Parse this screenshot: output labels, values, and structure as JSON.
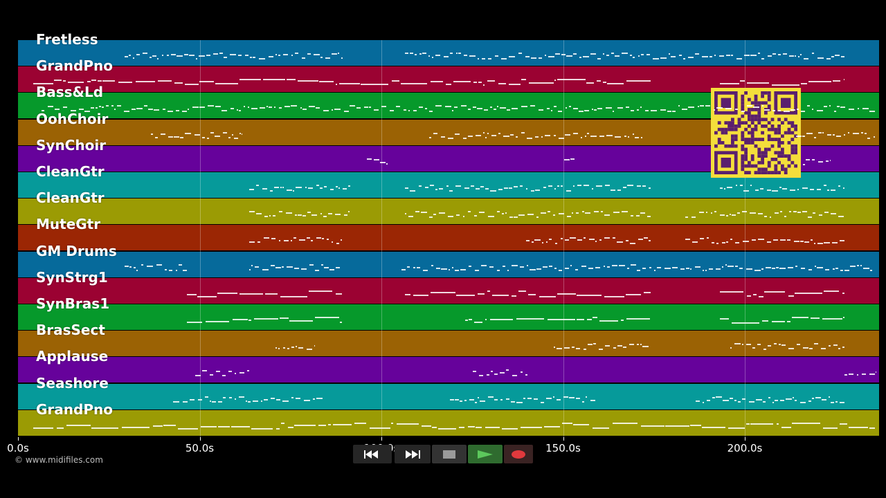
{
  "tracks": [
    {
      "name": "Fretless",
      "color": "#066a9b"
    },
    {
      "name": "GrandPno",
      "color": "#9b0232"
    },
    {
      "name": "Bass&Ld",
      "color": "#06992b"
    },
    {
      "name": "OohChoir",
      "color": "#9b6204"
    },
    {
      "name": "SynChoir",
      "color": "#66029b"
    },
    {
      "name": "CleanGtr",
      "color": "#069a9a"
    },
    {
      "name": "CleanGtr",
      "color": "#9b9b04"
    },
    {
      "name": "MuteGtr",
      "color": "#9b2604"
    },
    {
      "name": "GM Drums",
      "color": "#066a9b"
    },
    {
      "name": "SynStrg1",
      "color": "#9b0232"
    },
    {
      "name": "SynBras1",
      "color": "#06992b"
    },
    {
      "name": "BrasSect",
      "color": "#9b6204"
    },
    {
      "name": "Applause",
      "color": "#66029b"
    },
    {
      "name": "Seashore",
      "color": "#069a9a"
    },
    {
      "name": "GrandPno",
      "color": "#9b9b04"
    }
  ],
  "timeline": {
    "ticks": [
      "0.0s",
      "50.0s",
      "100.0s",
      "150.0s",
      "200.0s"
    ],
    "tick_seconds": [
      0,
      50,
      100,
      150,
      200
    ],
    "max_seconds": 237
  },
  "copyright": "© www.midifiles.com",
  "controls": [
    {
      "name": "rewind-button",
      "icon": "rewind-icon"
    },
    {
      "name": "fast-forward-button",
      "icon": "fast-forward-icon"
    },
    {
      "name": "stop-button",
      "icon": "stop-icon"
    },
    {
      "name": "play-button",
      "icon": "play-icon"
    },
    {
      "name": "record-button",
      "icon": "record-icon"
    }
  ],
  "colors": {
    "background": "#000000",
    "play": "#5cc85c",
    "record": "#e0393d",
    "qr": "#f4de3b"
  }
}
